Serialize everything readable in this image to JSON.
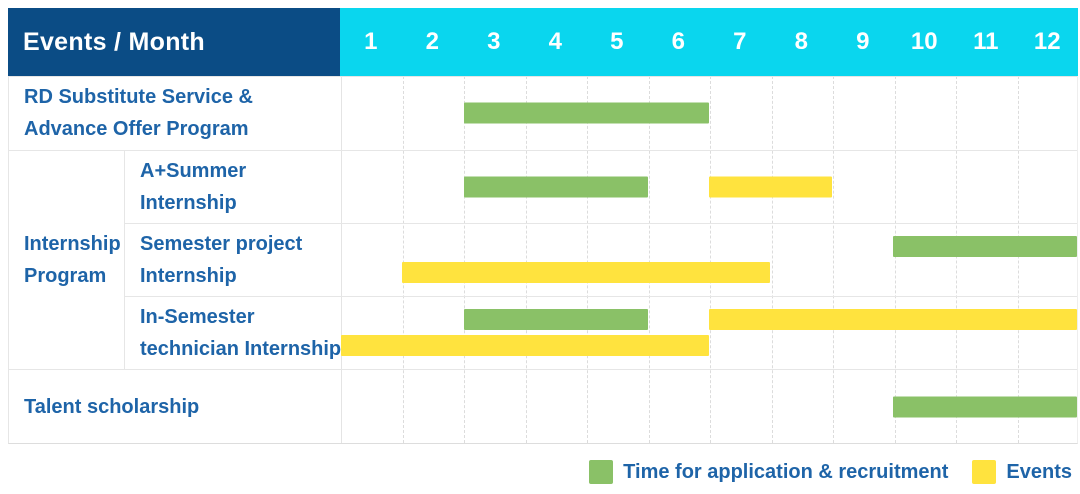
{
  "colors": {
    "header_bg": "#0b4c85",
    "months_bg": "#0ad6ee",
    "label_text": "#1e64a8",
    "bar_green": "#8ac167",
    "bar_yellow": "#ffe33e"
  },
  "table": {
    "header_title": "Events / Month",
    "months": [
      "1",
      "2",
      "3",
      "4",
      "5",
      "6",
      "7",
      "8",
      "9",
      "10",
      "11",
      "12"
    ],
    "group_label_lines": [
      "Internship",
      "Program"
    ],
    "rows": [
      {
        "label_lines": [
          "RD Substitute Service &",
          "Advance Offer Program"
        ],
        "bars": [
          {
            "type": "green",
            "track": "center",
            "start": 3,
            "end": 6
          }
        ]
      },
      {
        "label_lines": [
          "A+Summer",
          "Internship"
        ],
        "bars": [
          {
            "type": "green",
            "track": "center",
            "start": 3,
            "end": 5
          },
          {
            "type": "yellow",
            "track": "center",
            "start": 7,
            "end": 8
          }
        ]
      },
      {
        "label_lines": [
          "Semester project",
          "Internship"
        ],
        "bars": [
          {
            "type": "green",
            "track": "top",
            "start": 10,
            "end": 12
          },
          {
            "type": "yellow",
            "track": "bottom",
            "start": 2,
            "end": 7
          }
        ]
      },
      {
        "label_lines": [
          "In-Semester",
          "technician Internship"
        ],
        "bars": [
          {
            "type": "green",
            "track": "top",
            "start": 3,
            "end": 5
          },
          {
            "type": "yellow",
            "track": "top",
            "start": 7,
            "end": 12
          },
          {
            "type": "yellow",
            "track": "bottom",
            "start": 1,
            "end": 6
          }
        ]
      },
      {
        "label_lines": [
          "Talent scholarship"
        ],
        "bars": [
          {
            "type": "green",
            "track": "center",
            "start": 10,
            "end": 12
          }
        ]
      }
    ]
  },
  "legend": {
    "items": [
      {
        "type": "green",
        "label": "Time for application & recruitment"
      },
      {
        "type": "yellow",
        "label": "Events"
      }
    ]
  },
  "chart_data": {
    "type": "bar",
    "variant": "gantt",
    "title": "Events / Month",
    "xlabel": "Month",
    "x_ticks": [
      1,
      2,
      3,
      4,
      5,
      6,
      7,
      8,
      9,
      10,
      11,
      12
    ],
    "x_range": [
      1,
      12
    ],
    "grid": true,
    "legend_position": "bottom-right",
    "series_meaning": {
      "green": "Time for application & recruitment",
      "yellow": "Events"
    },
    "rows": [
      {
        "category": "RD Substitute Service & Advance Offer Program",
        "group": null,
        "spans": [
          {
            "series": "Time for application & recruitment",
            "color": "#8ac167",
            "start_month": 3,
            "end_month": 6
          }
        ]
      },
      {
        "category": "A+Summer Internship",
        "group": "Internship Program",
        "spans": [
          {
            "series": "Time for application & recruitment",
            "color": "#8ac167",
            "start_month": 3,
            "end_month": 5
          },
          {
            "series": "Events",
            "color": "#ffe33e",
            "start_month": 7,
            "end_month": 8
          }
        ]
      },
      {
        "category": "Semester project Internship",
        "group": "Internship Program",
        "spans": [
          {
            "series": "Time for application & recruitment",
            "color": "#8ac167",
            "start_month": 10,
            "end_month": 12
          },
          {
            "series": "Events",
            "color": "#ffe33e",
            "start_month": 2,
            "end_month": 7
          }
        ]
      },
      {
        "category": "In-Semester technician Internship",
        "group": "Internship Program",
        "spans": [
          {
            "series": "Time for application & recruitment",
            "color": "#8ac167",
            "start_month": 3,
            "end_month": 5
          },
          {
            "series": "Events",
            "color": "#ffe33e",
            "start_month": 7,
            "end_month": 12
          },
          {
            "series": "Events",
            "color": "#ffe33e",
            "start_month": 1,
            "end_month": 6
          }
        ]
      },
      {
        "category": "Talent scholarship",
        "group": null,
        "spans": [
          {
            "series": "Time for application & recruitment",
            "color": "#8ac167",
            "start_month": 10,
            "end_month": 12
          }
        ]
      }
    ]
  }
}
